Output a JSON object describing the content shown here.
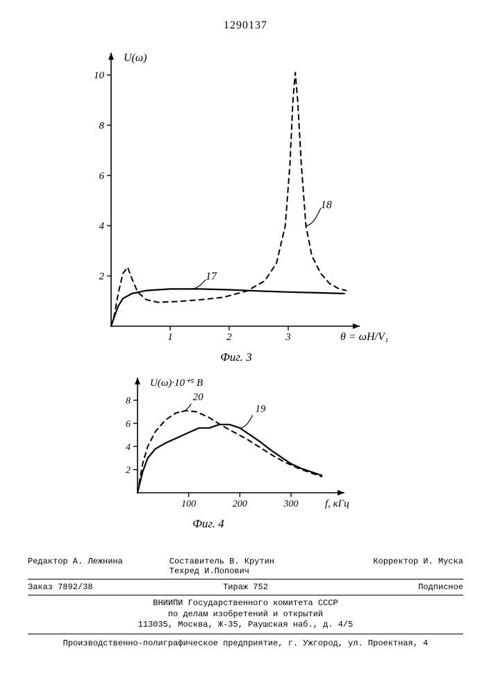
{
  "doc_number": "1290137",
  "fig3": {
    "type": "line",
    "y_label": "U(ω)",
    "x_label": "θ = ωH/V₁",
    "x_ticks": [
      1,
      2,
      3
    ],
    "y_ticks": [
      2,
      4,
      6,
      8,
      10
    ],
    "caption": "Фиг. 3",
    "xlim": [
      0,
      4
    ],
    "ylim": [
      0,
      10.5
    ],
    "background_color": "#ffffff",
    "axis_color": "#000000",
    "series": [
      {
        "label": "17",
        "label_pos": [
          1.6,
          1.85
        ],
        "style": "solid",
        "line_width": 2.2,
        "color": "#000000",
        "points": [
          [
            0.0,
            0.0
          ],
          [
            0.05,
            0.35
          ],
          [
            0.12,
            0.8
          ],
          [
            0.2,
            1.1
          ],
          [
            0.35,
            1.3
          ],
          [
            0.6,
            1.42
          ],
          [
            1.0,
            1.48
          ],
          [
            1.5,
            1.48
          ],
          [
            2.0,
            1.45
          ],
          [
            2.5,
            1.4
          ],
          [
            3.0,
            1.36
          ],
          [
            3.5,
            1.33
          ],
          [
            3.95,
            1.3
          ]
        ]
      },
      {
        "label": "18",
        "label_pos": [
          3.55,
          4.7
        ],
        "style": "dashed",
        "line_width": 2.0,
        "color": "#000000",
        "dash": "7,6",
        "points": [
          [
            0.0,
            0.0
          ],
          [
            0.05,
            0.4
          ],
          [
            0.12,
            1.3
          ],
          [
            0.2,
            2.1
          ],
          [
            0.28,
            2.35
          ],
          [
            0.35,
            1.9
          ],
          [
            0.45,
            1.35
          ],
          [
            0.6,
            1.05
          ],
          [
            0.8,
            0.95
          ],
          [
            1.1,
            0.98
          ],
          [
            1.5,
            1.05
          ],
          [
            1.9,
            1.15
          ],
          [
            2.3,
            1.4
          ],
          [
            2.6,
            1.8
          ],
          [
            2.8,
            2.5
          ],
          [
            2.95,
            4.0
          ],
          [
            3.03,
            6.5
          ],
          [
            3.08,
            9.0
          ],
          [
            3.12,
            10.1
          ],
          [
            3.16,
            9.0
          ],
          [
            3.22,
            6.5
          ],
          [
            3.3,
            4.0
          ],
          [
            3.4,
            2.8
          ],
          [
            3.55,
            2.1
          ],
          [
            3.7,
            1.7
          ],
          [
            3.85,
            1.5
          ],
          [
            3.98,
            1.42
          ]
        ]
      }
    ],
    "leader_18": {
      "from": [
        3.3,
        4.0
      ],
      "to": [
        3.55,
        4.7
      ]
    },
    "leader_17": {
      "from": [
        1.35,
        1.48
      ],
      "to": [
        1.6,
        1.85
      ]
    }
  },
  "fig4": {
    "type": "line",
    "y_label": "U(ω)·10⁺⁵ В",
    "x_label": "f, кГц",
    "x_ticks": [
      100,
      200,
      300
    ],
    "y_ticks": [
      2,
      4,
      6,
      8
    ],
    "caption": "Фиг. 4",
    "xlim": [
      0,
      380
    ],
    "ylim": [
      0,
      9
    ],
    "background_color": "#ffffff",
    "axis_color": "#000000",
    "series": [
      {
        "label": "19",
        "label_pos": [
          230,
          7.0
        ],
        "style": "solid",
        "line_width": 2.2,
        "color": "#000000",
        "points": [
          [
            0,
            0.0
          ],
          [
            10,
            1.8
          ],
          [
            20,
            3.0
          ],
          [
            35,
            3.8
          ],
          [
            55,
            4.3
          ],
          [
            80,
            4.8
          ],
          [
            100,
            5.2
          ],
          [
            120,
            5.6
          ],
          [
            140,
            5.6
          ],
          [
            160,
            5.9
          ],
          [
            180,
            5.9
          ],
          [
            200,
            5.6
          ],
          [
            220,
            5.0
          ],
          [
            240,
            4.4
          ],
          [
            260,
            3.7
          ],
          [
            280,
            3.1
          ],
          [
            300,
            2.5
          ],
          [
            320,
            2.1
          ],
          [
            340,
            1.8
          ],
          [
            360,
            1.5
          ]
        ]
      },
      {
        "label": "20",
        "label_pos": [
          108,
          8.0
        ],
        "style": "dashed",
        "line_width": 2.0,
        "color": "#000000",
        "dash": "7,6",
        "points": [
          [
            0,
            0.0
          ],
          [
            10,
            2.5
          ],
          [
            20,
            4.0
          ],
          [
            35,
            5.3
          ],
          [
            55,
            6.3
          ],
          [
            75,
            6.9
          ],
          [
            95,
            7.1
          ],
          [
            115,
            7.0
          ],
          [
            140,
            6.5
          ],
          [
            165,
            5.8
          ],
          [
            190,
            5.2
          ],
          [
            215,
            4.6
          ],
          [
            240,
            3.9
          ],
          [
            265,
            3.2
          ],
          [
            290,
            2.6
          ],
          [
            315,
            2.1
          ],
          [
            340,
            1.7
          ],
          [
            360,
            1.4
          ]
        ]
      }
    ],
    "leader_19": {
      "from": [
        200,
        5.6
      ],
      "to": [
        225,
        6.7
      ]
    },
    "leader_20": {
      "from": [
        85,
        7.0
      ],
      "to": [
        105,
        7.7
      ]
    }
  },
  "footer": {
    "editor": "Редактор А. Лежнина",
    "compiler": "Составитель В. Крутин",
    "techred": "Техред И.Попович",
    "corrector": "Корректор И. Муска",
    "order": "Заказ 7892/38",
    "tirage": "Тираж 752",
    "subscription": "Подписное",
    "org1": "ВНИИПИ Государственного комитета СССР",
    "org2": "по делам изобретений и открытий",
    "address": "113035, Москва, Ж-35, Раушская наб., д. 4/5",
    "printer": "Производственно-полиграфическое предприятие, г. Ужгород, ул. Проектная, 4"
  }
}
